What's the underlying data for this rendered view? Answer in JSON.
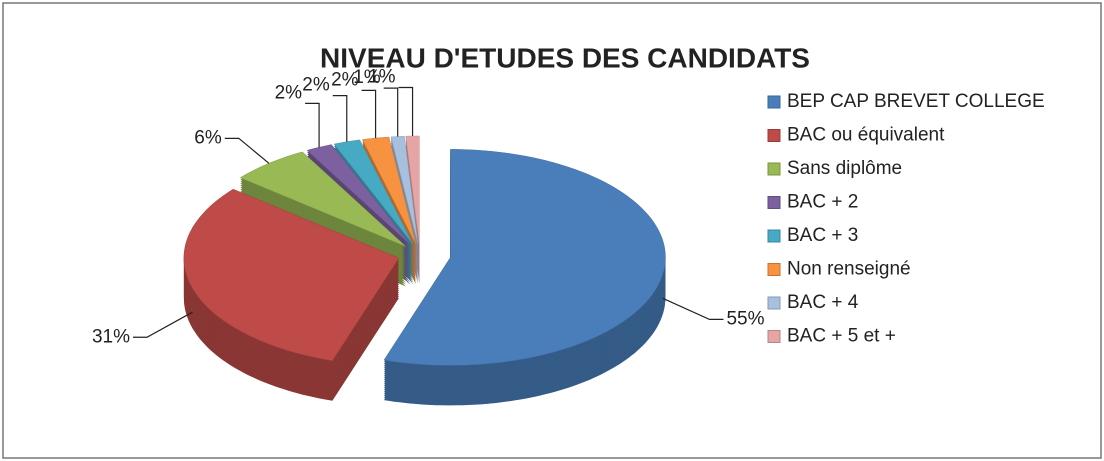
{
  "chart_data": {
    "type": "pie3d",
    "title": "NIVEAU D'ETUDES DES CANDIDATS",
    "categories": [
      "BEP CAP BREVET COLLEGE",
      "BAC ou équivalent",
      "Sans diplôme",
      "BAC + 2",
      "BAC + 3",
      "Non renseigné",
      "BAC + 4",
      "BAC + 5 et +"
    ],
    "values": [
      55,
      31,
      6,
      2,
      2,
      2,
      1,
      1
    ],
    "value_labels": [
      "55%",
      "31%",
      "6%",
      "2%",
      "2%",
      "2%",
      "1%",
      "1%"
    ],
    "colors": [
      "#4a7ebb",
      "#be4b48",
      "#98b954",
      "#7d60a0",
      "#46aac5",
      "#f69240",
      "#a7c0de",
      "#e6a5a4"
    ],
    "legend": "right"
  }
}
